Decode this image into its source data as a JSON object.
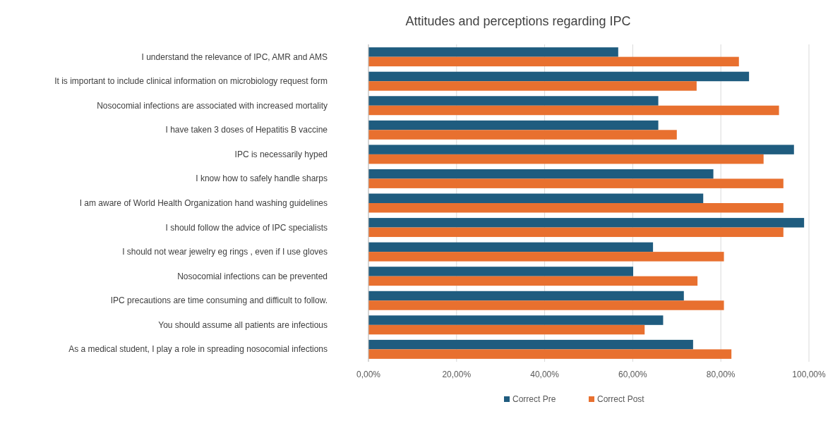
{
  "chart_data": {
    "type": "bar",
    "orientation": "horizontal",
    "title": "Attitudes and perceptions regarding IPC",
    "categories": [
      "I understand the relevance of IPC, AMR and AMS",
      "It is important to include clinical information on microbiology request form",
      "Nosocomial infections are associated with increased mortality",
      "I have taken 3 doses of Hepatitis B vaccine",
      "IPC is necessarily hyped",
      "I know how to safely handle sharps",
      "I am aware of World Health Organization hand washing guidelines",
      "I should follow the advice of IPC specialists",
      "I should not wear jewelry eg rings , even if I use gloves",
      "Nosocomial infections can be prevented",
      "IPC precautions are time consuming and difficult to follow.",
      "You should  assume all patients are infectious",
      "As a medical student, I play a role in spreading nosocomial infections"
    ],
    "series": [
      {
        "name": "Correct Pre",
        "color": "#1f5c7f",
        "values": [
          56.7,
          86.4,
          65.8,
          65.8,
          96.6,
          78.3,
          76.0,
          98.9,
          64.6,
          60.1,
          71.6,
          66.9,
          73.7
        ]
      },
      {
        "name": "Correct Post",
        "color": "#e8702f",
        "values": [
          84.1,
          74.5,
          93.2,
          70.0,
          89.7,
          94.2,
          94.2,
          94.2,
          80.7,
          74.7,
          80.7,
          62.7,
          82.4
        ]
      }
    ],
    "xlim": [
      0,
      100
    ],
    "xticks": [
      {
        "value": 0,
        "label": "0,00%"
      },
      {
        "value": 20,
        "label": "20,00%"
      },
      {
        "value": 40,
        "label": "40,00%"
      },
      {
        "value": 60,
        "label": "60,00%"
      },
      {
        "value": 80,
        "label": "80,00%"
      },
      {
        "value": 100,
        "label": "100,00%"
      }
    ],
    "grid": "x",
    "legend": "bottom"
  }
}
